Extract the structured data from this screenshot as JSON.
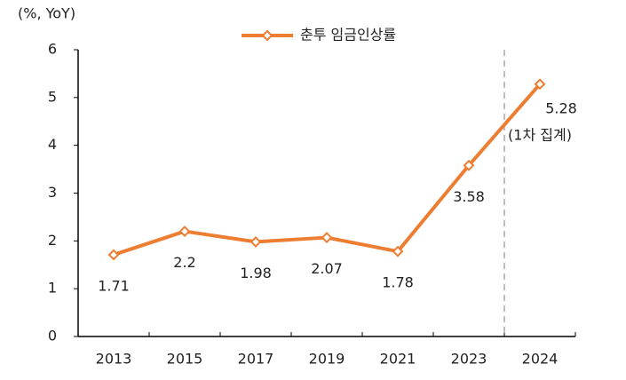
{
  "chart_data": {
    "type": "line",
    "y_axis_label": "(%, YoY)",
    "categories": [
      "2013",
      "2015",
      "2017",
      "2019",
      "2021",
      "2023",
      "2024"
    ],
    "series": [
      {
        "name": "춘투 임금인상률",
        "color": "#ed7d31",
        "values": [
          1.71,
          2.2,
          1.98,
          2.07,
          1.78,
          3.58,
          5.28
        ]
      }
    ],
    "annotation": "(1차 집계)",
    "ylim": [
      0,
      6
    ],
    "yticks": [
      0,
      1,
      2,
      3,
      4,
      5,
      6
    ],
    "grid": false
  }
}
